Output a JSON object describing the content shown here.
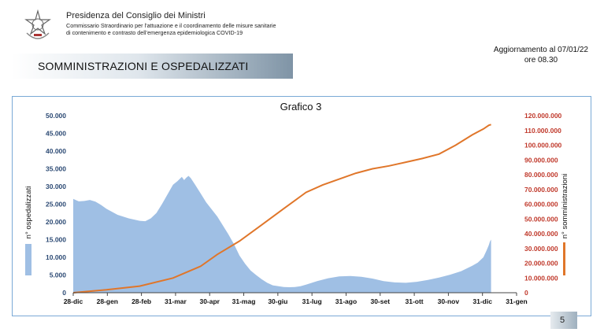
{
  "header": {
    "org_title": "Presidenza del Consiglio dei Ministri",
    "org_sub_1": "Commissario Straordinario per l’attuazione e il coordinamento delle misure sanitarie",
    "org_sub_2": "di contenimento e contrasto dell’emergenza epidemiologica COVID-19",
    "update_line_1": "Aggiornamento al 07/01/22",
    "update_line_2": "ore 08.30"
  },
  "section_title": "SOMMINISTRAZIONI E OSPEDALIZZATI",
  "page_number": "5",
  "colors": {
    "hospitalized": "#9fbfe4",
    "administrations": "#e0762a",
    "left_axis_text": "#2c4a74",
    "right_axis_text": "#c0392b"
  },
  "chart_data": {
    "type": "area+line",
    "title": "Grafico 3",
    "x_ticks": [
      "28-dic",
      "28-gen",
      "28-feb",
      "31-mar",
      "30-apr",
      "31-mag",
      "30-giu",
      "31-lug",
      "31-ago",
      "30-set",
      "31-ott",
      "30-nov",
      "31-dic",
      "31-gen"
    ],
    "y_left": {
      "label": "n° ospedalizzati",
      "range": [
        0,
        50000
      ],
      "ticks": [
        "0",
        "5.000",
        "10.000",
        "15.000",
        "20.000",
        "25.000",
        "30.000",
        "35.000",
        "40.000",
        "45.000",
        "50.000"
      ]
    },
    "y_right": {
      "label": "n° somministrazioni",
      "range": [
        0,
        120000000
      ],
      "ticks": [
        "0",
        "10.000.000",
        "20.000.000",
        "30.000.000",
        "40.000.000",
        "50.000.000",
        "60.000.000",
        "70.000.000",
        "80.000.000",
        "90.000.000",
        "100.000.000",
        "110.000.000",
        "120.000.000"
      ]
    },
    "series": [
      {
        "name": "n° ospedalizzati",
        "kind": "area",
        "points": [
          [
            0,
            26500
          ],
          [
            5,
            25800
          ],
          [
            10,
            25900
          ],
          [
            15,
            26200
          ],
          [
            20,
            25700
          ],
          [
            25,
            24800
          ],
          [
            30,
            23700
          ],
          [
            40,
            22000
          ],
          [
            50,
            21000
          ],
          [
            60,
            20300
          ],
          [
            65,
            20200
          ],
          [
            70,
            21000
          ],
          [
            75,
            22500
          ],
          [
            80,
            25000
          ],
          [
            90,
            30500
          ],
          [
            94,
            31500
          ],
          [
            98,
            32700
          ],
          [
            100,
            31800
          ],
          [
            102,
            32500
          ],
          [
            104,
            33000
          ],
          [
            106,
            32400
          ],
          [
            110,
            30500
          ],
          [
            115,
            28000
          ],
          [
            120,
            25500
          ],
          [
            130,
            21500
          ],
          [
            140,
            16500
          ],
          [
            145,
            13700
          ],
          [
            150,
            10500
          ],
          [
            155,
            8200
          ],
          [
            160,
            6300
          ],
          [
            165,
            5000
          ],
          [
            170,
            3800
          ],
          [
            175,
            2800
          ],
          [
            180,
            2100
          ],
          [
            190,
            1600
          ],
          [
            195,
            1550
          ],
          [
            200,
            1600
          ],
          [
            205,
            1850
          ],
          [
            210,
            2300
          ],
          [
            220,
            3300
          ],
          [
            230,
            4100
          ],
          [
            240,
            4600
          ],
          [
            250,
            4700
          ],
          [
            260,
            4500
          ],
          [
            270,
            4000
          ],
          [
            280,
            3300
          ],
          [
            290,
            2900
          ],
          [
            300,
            2800
          ],
          [
            310,
            3100
          ],
          [
            320,
            3600
          ],
          [
            330,
            4300
          ],
          [
            340,
            5100
          ],
          [
            350,
            6100
          ],
          [
            360,
            7600
          ],
          [
            365,
            8500
          ],
          [
            370,
            10000
          ],
          [
            373,
            12000
          ],
          [
            375,
            13500
          ],
          [
            376,
            14500
          ],
          [
            377,
            15000
          ],
          [
            377,
            0
          ]
        ]
      },
      {
        "name": "n° somministrazioni",
        "kind": "line",
        "points": [
          [
            0,
            0
          ],
          [
            30,
            2000000
          ],
          [
            60,
            4500000
          ],
          [
            90,
            10000000
          ],
          [
            115,
            18000000
          ],
          [
            130,
            26000000
          ],
          [
            150,
            35000000
          ],
          [
            170,
            46000000
          ],
          [
            190,
            57000000
          ],
          [
            210,
            68000000
          ],
          [
            225,
            73000000
          ],
          [
            240,
            77000000
          ],
          [
            255,
            81000000
          ],
          [
            270,
            84000000
          ],
          [
            285,
            86000000
          ],
          [
            300,
            88500000
          ],
          [
            315,
            91000000
          ],
          [
            330,
            94000000
          ],
          [
            345,
            100000000
          ],
          [
            360,
            107000000
          ],
          [
            365,
            109000000
          ],
          [
            370,
            111000000
          ],
          [
            375,
            113500000
          ],
          [
            377,
            114000000
          ]
        ]
      }
    ],
    "x_range": [
      0,
      400
    ],
    "legend": "left and right axes as colored bars",
    "grid": false
  }
}
